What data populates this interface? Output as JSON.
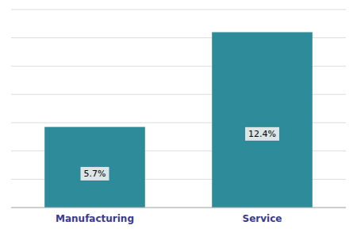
{
  "chart_data": {
    "type": "bar",
    "categories": [
      "Manufacturing",
      "Service"
    ],
    "values": [
      5.7,
      12.4
    ],
    "value_labels": [
      "5.7%",
      "12.4%"
    ],
    "data_labels": true,
    "color": "#2e8b9a",
    "ylim": [
      0,
      14
    ],
    "yticks": [
      0,
      2,
      4,
      6,
      8,
      10,
      12,
      14
    ],
    "grid": true,
    "tick_labels": "x"
  }
}
